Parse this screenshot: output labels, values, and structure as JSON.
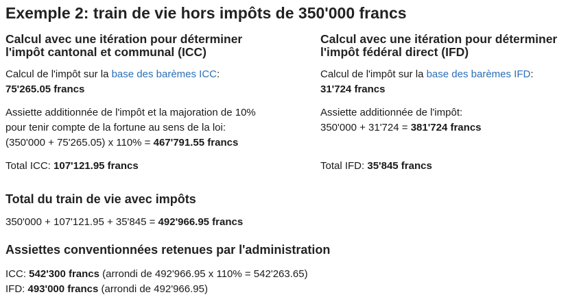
{
  "title": "Exemple 2: train de vie hors impôts de 350'000 francs",
  "icc": {
    "heading_l1": "Calcul avec une itération pour déterminer",
    "heading_l2": "l'impôt cantonal et communal (ICC)",
    "calc_prefix": "Calcul de l'impôt sur la ",
    "calc_link": "base des barèmes ICC",
    "calc_suffix": ":",
    "calc_value": "75'265.05 francs",
    "assiette_l1": "Assiette additionnée de l'impôt et la majoration de 10%",
    "assiette_l2": "pour tenir compte de la fortune au sens de la loi:",
    "assiette_l3_prefix": "(350'000 + 75'265.05) x 110% = ",
    "assiette_l3_value": "467'791.55 francs",
    "total_prefix": "Total ICC: ",
    "total_value": "107'121.95 francs"
  },
  "ifd": {
    "heading_l1": "Calcul avec une itération pour déterminer",
    "heading_l2": "l'impôt fédéral direct (IFD)",
    "calc_prefix": "Calcul de l'impôt sur la ",
    "calc_link": "base des barèmes IFD",
    "calc_suffix": ":",
    "calc_value": "31'724 francs",
    "assiette_l1": "Assiette additionnée de l'impôt:",
    "assiette_l2_prefix": "350'000 + 31'724 = ",
    "assiette_l2_value": "381'724 francs",
    "total_prefix": "Total IFD: ",
    "total_value": "35'845 francs"
  },
  "total": {
    "heading": "Total du train de vie avec impôts",
    "line_prefix": "350'000 + 107'121.95 + 35'845 = ",
    "line_value": "492'966.95 francs"
  },
  "assiettes": {
    "heading": "Assiettes conventionnées retenues par l'administration",
    "icc_label": "ICC: ",
    "icc_value": "542'300 francs",
    "icc_note": " (arrondi de 492'966.95 x 110% = 542'263.65)",
    "ifd_label": "IFD: ",
    "ifd_value": "493'000 francs",
    "ifd_note": " (arrondi de 492'966.95)"
  }
}
